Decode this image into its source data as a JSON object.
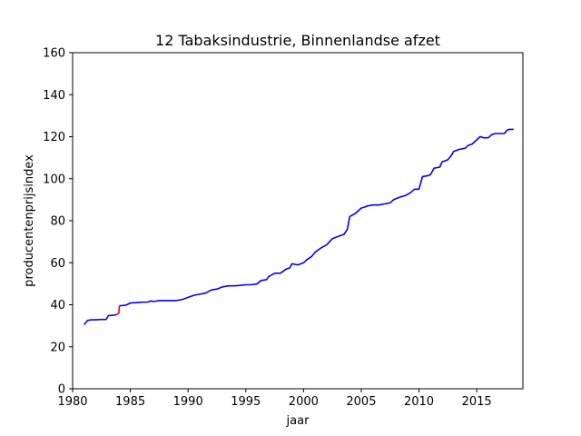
{
  "chart_data": {
    "type": "line",
    "title": "12 Tabaksindustrie, Binnenlandse afzet",
    "xlabel": "jaar",
    "ylabel": "producentenprijsindex",
    "xlim": [
      1980,
      2019
    ],
    "ylim": [
      0,
      160
    ],
    "xticks": [
      1980,
      1985,
      1990,
      1995,
      2000,
      2005,
      2010,
      2015
    ],
    "yticks": [
      0,
      20,
      40,
      60,
      80,
      100,
      120,
      140,
      160
    ],
    "grid": false,
    "legend": "none",
    "series": [
      {
        "color": "#0000ff",
        "points": [
          [
            1981.0,
            30.5
          ],
          [
            1981.3,
            32.5
          ],
          [
            1981.6,
            32.8
          ],
          [
            1982.0,
            32.8
          ],
          [
            1982.5,
            33.0
          ],
          [
            1982.9,
            33.0
          ],
          [
            1983.1,
            34.8
          ],
          [
            1983.5,
            35.0
          ],
          [
            1983.8,
            35.3
          ]
        ]
      },
      {
        "color": "#ff0000",
        "points": [
          [
            1983.8,
            35.3
          ],
          [
            1984.0,
            36.0
          ],
          [
            1984.05,
            39.5
          ]
        ]
      },
      {
        "color": "#0000ff",
        "points": [
          [
            1984.05,
            39.5
          ],
          [
            1984.6,
            39.8
          ],
          [
            1985.0,
            40.8
          ],
          [
            1985.5,
            41.0
          ],
          [
            1986.0,
            41.2
          ],
          [
            1986.5,
            41.3
          ],
          [
            1986.8,
            41.8
          ],
          [
            1987.0,
            41.5
          ],
          [
            1987.5,
            42.0
          ],
          [
            1988.0,
            42.0
          ],
          [
            1988.5,
            42.0
          ],
          [
            1989.0,
            42.0
          ],
          [
            1989.5,
            42.5
          ],
          [
            1990.0,
            43.5
          ],
          [
            1990.5,
            44.5
          ],
          [
            1991.0,
            45.0
          ],
          [
            1991.5,
            45.5
          ],
          [
            1992.0,
            47.0
          ],
          [
            1992.5,
            47.5
          ],
          [
            1993.0,
            48.5
          ],
          [
            1993.5,
            49.0
          ],
          [
            1994.0,
            49.0
          ],
          [
            1994.5,
            49.2
          ],
          [
            1995.0,
            49.5
          ],
          [
            1995.5,
            49.5
          ],
          [
            1996.0,
            50.0
          ],
          [
            1996.3,
            51.5
          ],
          [
            1996.8,
            52.0
          ],
          [
            1997.0,
            53.5
          ],
          [
            1997.5,
            55.0
          ],
          [
            1998.0,
            55.0
          ],
          [
            1998.5,
            57.0
          ],
          [
            1998.8,
            57.5
          ],
          [
            1999.0,
            59.5
          ],
          [
            1999.5,
            59.0
          ],
          [
            2000.0,
            60.0
          ],
          [
            2000.3,
            61.5
          ],
          [
            2000.7,
            63.0
          ],
          [
            2001.0,
            65.0
          ],
          [
            2001.5,
            67.0
          ],
          [
            2002.0,
            68.5
          ],
          [
            2002.5,
            71.5
          ],
          [
            2003.0,
            72.5
          ],
          [
            2003.5,
            73.5
          ],
          [
            2003.8,
            76.0
          ],
          [
            2004.0,
            82.0
          ],
          [
            2004.5,
            83.5
          ],
          [
            2004.8,
            85.0
          ],
          [
            2005.0,
            86.0
          ],
          [
            2005.3,
            86.5
          ],
          [
            2005.5,
            87.0
          ],
          [
            2006.0,
            87.5
          ],
          [
            2006.5,
            87.5
          ],
          [
            2007.0,
            88.0
          ],
          [
            2007.5,
            88.5
          ],
          [
            2007.8,
            90.0
          ],
          [
            2008.0,
            90.5
          ],
          [
            2008.5,
            91.5
          ],
          [
            2008.8,
            92.0
          ],
          [
            2009.0,
            92.5
          ],
          [
            2009.3,
            93.5
          ],
          [
            2009.6,
            95.0
          ],
          [
            2010.0,
            95.0
          ],
          [
            2010.3,
            101.0
          ],
          [
            2010.8,
            101.5
          ],
          [
            2011.0,
            102.0
          ],
          [
            2011.3,
            105.0
          ],
          [
            2011.8,
            105.5
          ],
          [
            2012.0,
            108.0
          ],
          [
            2012.5,
            109.0
          ],
          [
            2012.8,
            111.0
          ],
          [
            2013.0,
            113.0
          ],
          [
            2013.5,
            114.0
          ],
          [
            2014.0,
            114.5
          ],
          [
            2014.3,
            116.0
          ],
          [
            2014.6,
            116.5
          ],
          [
            2015.0,
            118.5
          ],
          [
            2015.3,
            120.0
          ],
          [
            2015.6,
            119.5
          ],
          [
            2016.0,
            119.5
          ],
          [
            2016.3,
            121.0
          ],
          [
            2016.6,
            121.5
          ],
          [
            2017.0,
            121.5
          ],
          [
            2017.4,
            121.5
          ],
          [
            2017.6,
            123.0
          ],
          [
            2017.8,
            123.5
          ],
          [
            2018.2,
            123.5
          ]
        ]
      }
    ]
  }
}
